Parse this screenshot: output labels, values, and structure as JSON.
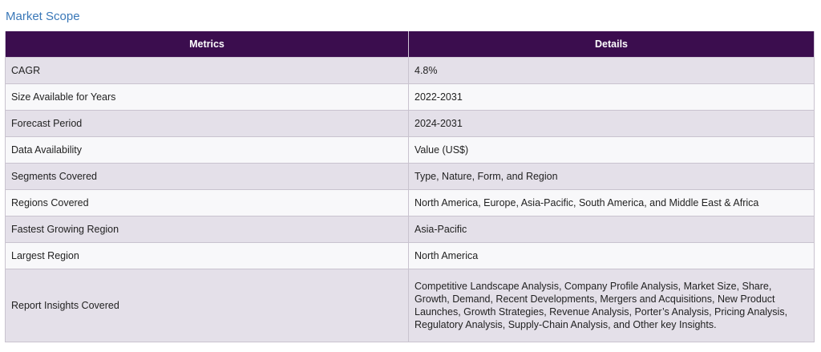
{
  "title": "Market Scope",
  "table": {
    "headers": [
      "Metrics",
      "Details"
    ],
    "rows": [
      {
        "metric": "CAGR",
        "detail": "4.8%"
      },
      {
        "metric": "Size Available for Years",
        "detail": "2022-2031"
      },
      {
        "metric": "Forecast Period",
        "detail": "2024-2031"
      },
      {
        "metric": "Data Availability",
        "detail": "Value (US$)"
      },
      {
        "metric": "Segments Covered",
        "detail": "Type, Nature, Form, and Region"
      },
      {
        "metric": "Regions Covered",
        "detail": "North America, Europe, Asia-Pacific, South America, and Middle East & Africa"
      },
      {
        "metric": "Fastest Growing Region",
        "detail": "Asia-Pacific"
      },
      {
        "metric": "Largest Region",
        "detail": "North America"
      },
      {
        "metric": "Report Insights Covered",
        "detail": "Competitive Landscape Analysis, Company Profile Analysis, Market Size, Share, Growth, Demand, Recent Developments, Mergers and Acquisitions, New Product Launches, Growth Strategies, Revenue Analysis, Porter’s Analysis, Pricing Analysis, Regulatory Analysis, Supply-Chain Analysis, and Other key Insights."
      }
    ]
  },
  "colors": {
    "header_bg": "#3b0d4e",
    "title_color": "#3a78b8",
    "row_odd": "#e4e0e9",
    "row_even": "#f8f8fa"
  }
}
